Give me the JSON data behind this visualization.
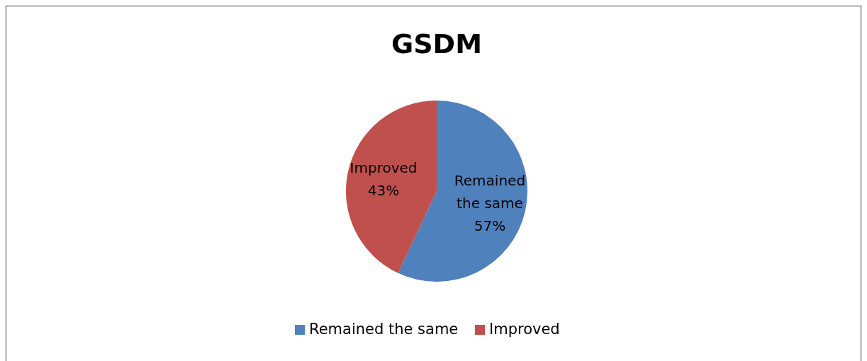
{
  "chart_data": {
    "type": "pie",
    "title": "GSDM",
    "categories": [
      "Remained the same",
      "Improved"
    ],
    "values": [
      57,
      43
    ],
    "colors": [
      "#4f81bd",
      "#c0504d"
    ],
    "value_labels": [
      "57%",
      "43%"
    ],
    "legend": "bottom"
  }
}
